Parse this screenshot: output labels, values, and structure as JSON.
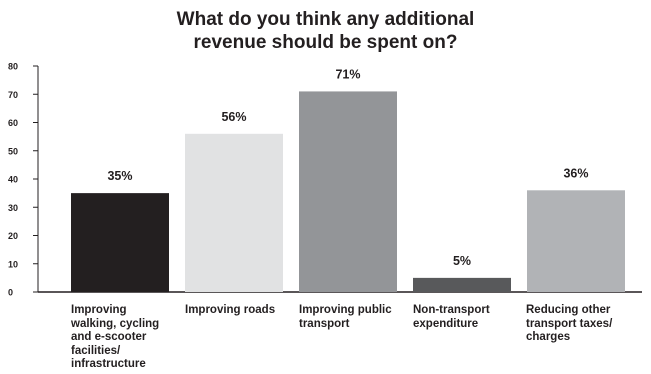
{
  "chart_data": {
    "type": "bar",
    "title_lines": [
      "What do you think any additional",
      "revenue should be spent on?"
    ],
    "categories": [
      "Improving walking, cycling and e-scooter facilities/ infrastructure",
      "Improving roads",
      "Improving public transport",
      "Non-transport expenditure",
      "Reducing other transport taxes/ charges"
    ],
    "values": [
      35,
      56,
      71,
      5,
      36
    ],
    "value_labels": [
      "35%",
      "56%",
      "71%",
      "5%",
      "36%"
    ],
    "bar_colors": [
      "#231f20",
      "#e1e2e3",
      "#939598",
      "#58595b",
      "#b1b3b6"
    ],
    "ylim": [
      0,
      80
    ],
    "yticks": [
      "0",
      "10",
      "20",
      "30",
      "40",
      "50",
      "60",
      "70",
      "80"
    ],
    "grid": false,
    "legend": "none"
  }
}
